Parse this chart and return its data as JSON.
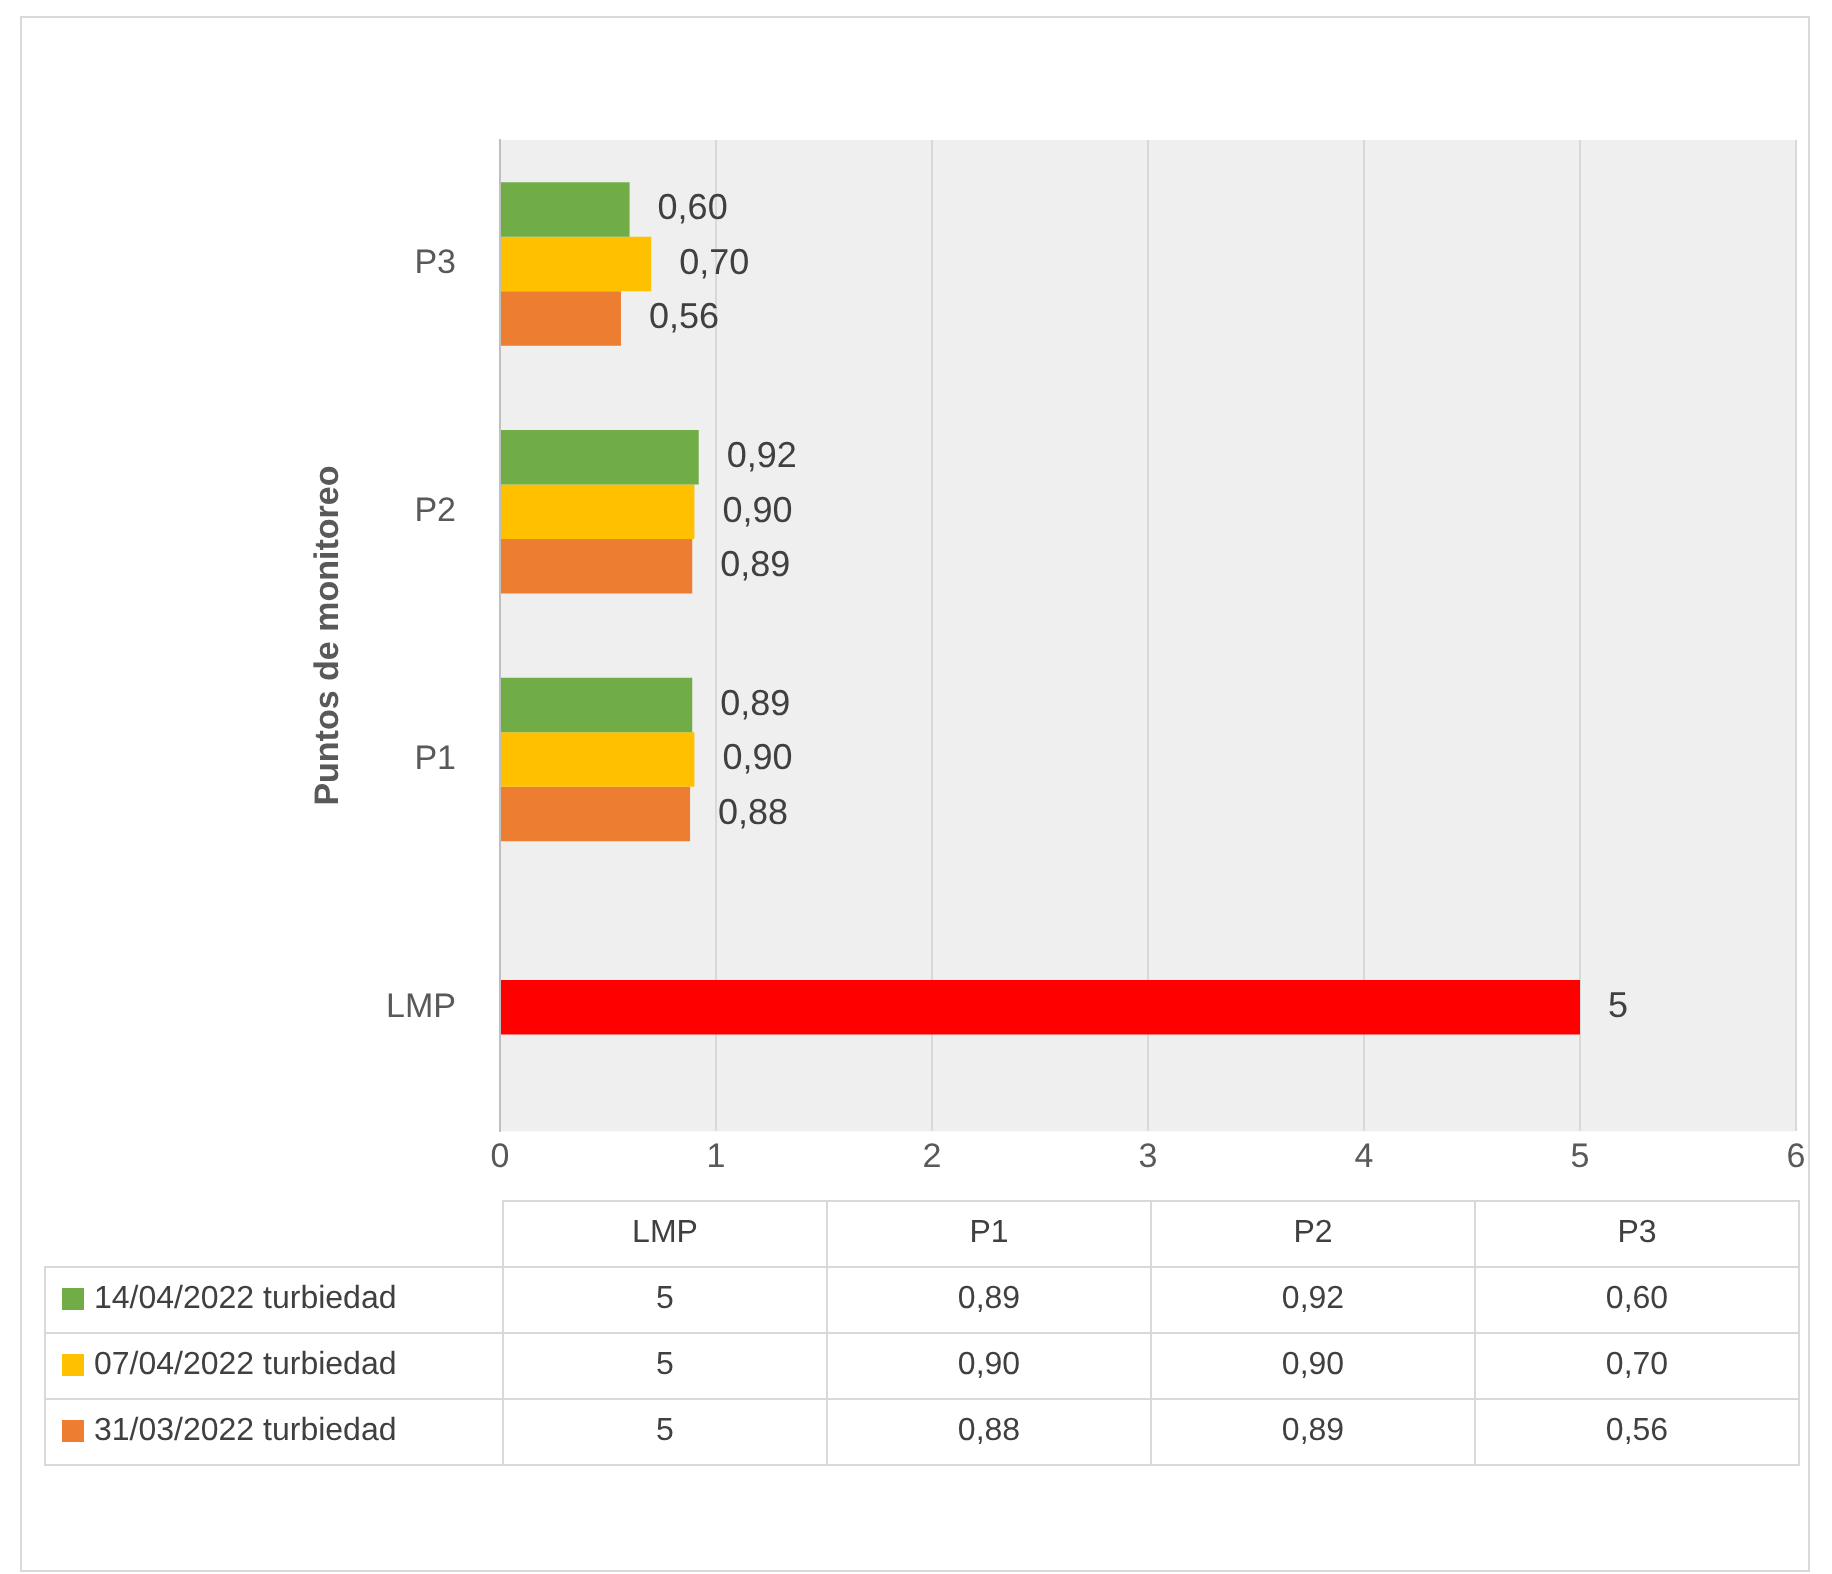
{
  "chart_data": {
    "type": "bar",
    "orientation": "horizontal",
    "ylabel": "Puntos de monitoreo",
    "categories": [
      "P3",
      "P2",
      "P1",
      "LMP"
    ],
    "series": [
      {
        "name": "14/04/2022 turbiedad",
        "color": "#70ad47",
        "values": [
          0.6,
          0.92,
          0.89,
          null
        ],
        "value_labels": [
          "0,60",
          "0,92",
          "0,89",
          "5"
        ]
      },
      {
        "name": "07/04/2022 turbiedad",
        "color": "#ffc000",
        "colors": [
          "#ffc000",
          "#ffc000",
          "#ffc000",
          "#ff0000"
        ],
        "values": [
          0.7,
          0.9,
          0.9,
          5
        ],
        "value_labels": [
          "0,70",
          "0,90",
          "0,90",
          "5"
        ]
      },
      {
        "name": "31/03/2022 turbiedad",
        "color": "#ed7d31",
        "values": [
          0.56,
          0.89,
          0.88,
          null
        ],
        "value_labels": [
          "0,56",
          "0,89",
          "0,88",
          "5"
        ]
      }
    ],
    "xlim": [
      0,
      6
    ],
    "xticks": [
      0,
      1,
      2,
      3,
      4,
      5,
      6
    ],
    "grid": "x",
    "legend": "bottom"
  }
}
